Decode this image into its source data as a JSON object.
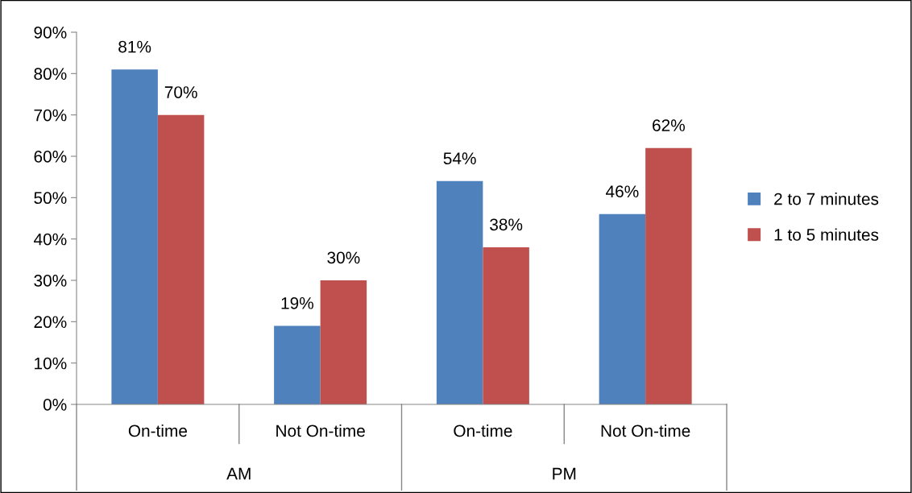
{
  "chart_data": {
    "type": "bar",
    "categories": [
      "On-time",
      "Not On-time",
      "On-time",
      "Not On-time"
    ],
    "series": [
      {
        "name": "2 to 7 minutes",
        "color": "#4f81bd",
        "values": [
          81,
          19,
          54,
          46
        ],
        "value_labels": [
          "81%",
          "19%",
          "54%",
          "46%"
        ]
      },
      {
        "name": "1 to 5 minutes",
        "color": "#c0504d",
        "values": [
          70,
          30,
          38,
          62
        ],
        "value_labels": [
          "70%",
          "30%",
          "38%",
          "62%"
        ]
      }
    ],
    "annotations": [
      "AM",
      "PM"
    ],
    "ylim": [
      0,
      90
    ],
    "yticks": [
      {
        "value": 0,
        "label": "0%"
      },
      {
        "value": 10,
        "label": "10%"
      },
      {
        "value": 20,
        "label": "20%"
      },
      {
        "value": 30,
        "label": "30%"
      },
      {
        "value": 40,
        "label": "40%"
      },
      {
        "value": 50,
        "label": "50%"
      },
      {
        "value": 60,
        "label": "60%"
      },
      {
        "value": 70,
        "label": "70%"
      },
      {
        "value": 80,
        "label": "80%"
      },
      {
        "value": 90,
        "label": "90%"
      }
    ],
    "grid": false,
    "legend": "right"
  }
}
